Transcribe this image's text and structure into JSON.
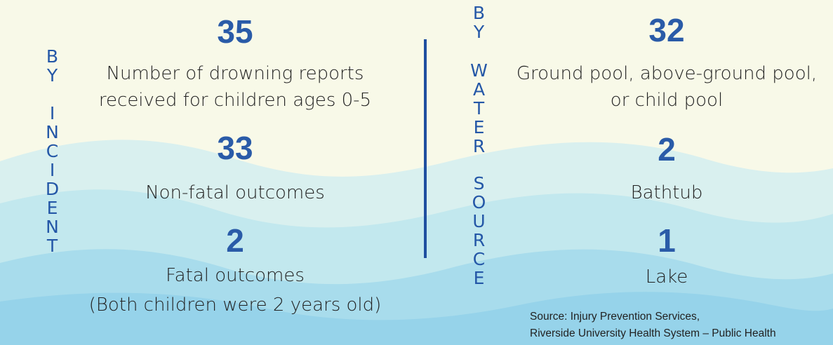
{
  "left": {
    "heading": [
      "BY",
      "INCIDENT"
    ],
    "stats": [
      {
        "value": 35,
        "label": [
          "Number of drowning reports",
          "received for children ages 0-5"
        ]
      },
      {
        "value": 33,
        "label": [
          "Non-fatal outcomes"
        ]
      },
      {
        "value": 2,
        "label": [
          "Fatal outcomes",
          "(Both children were 2 years old)"
        ]
      }
    ]
  },
  "right": {
    "heading": [
      "BY",
      "WATER",
      "SOURCE"
    ],
    "stats": [
      {
        "value": 32,
        "label": [
          "Ground pool, above-ground pool,",
          "or child pool"
        ]
      },
      {
        "value": 2,
        "label": [
          "Bathtub"
        ]
      },
      {
        "value": 1,
        "label": [
          "Lake"
        ]
      }
    ]
  },
  "source": [
    "Source: Injury Prevention Services,",
    "Riverside University Health System – Public Health"
  ]
}
